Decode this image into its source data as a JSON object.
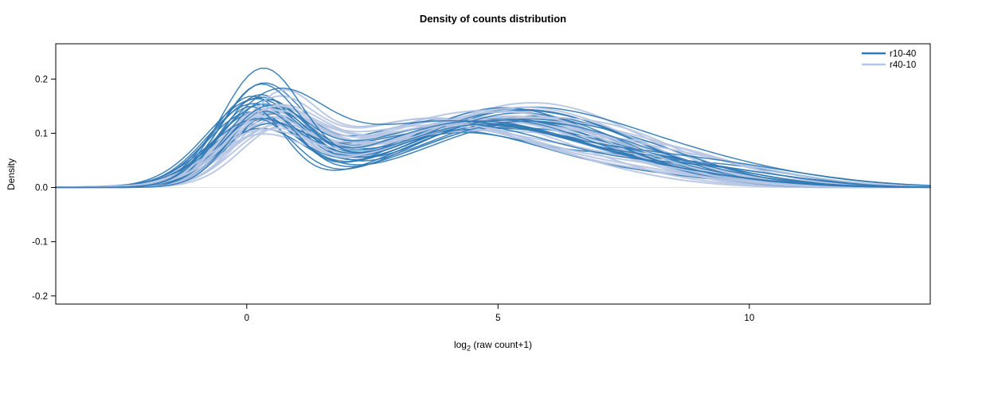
{
  "chart_data": {
    "type": "line",
    "subtype": "density-ensemble",
    "title": "Density of counts distribution",
    "xlabel": {
      "prefix": "log",
      "sub": "2",
      "suffix": " (raw count+1)"
    },
    "ylabel": "Density",
    "xlim": [
      -3.8,
      13.6
    ],
    "ylim": [
      -0.215,
      0.265
    ],
    "x_ticks": [
      0,
      5,
      10
    ],
    "x_tick_labels": [
      "0",
      "5",
      "10"
    ],
    "y_ticks": [
      -0.2,
      -0.1,
      0.0,
      0.1,
      0.2
    ],
    "y_tick_labels": [
      "-0.2",
      "-0.1",
      "0.0",
      "0.1",
      "0.2"
    ],
    "grid": false,
    "legend_position": "top-right",
    "background_color": "#ffffff",
    "border_color": "#000000",
    "zero_line_color": "#e2e2e2",
    "series_groups": [
      {
        "name": "r10-40",
        "color": "#3079b5",
        "count": 22,
        "stroke_width": 1.5,
        "seed": 101,
        "peak1": {
          "amp": [
            0.1,
            0.165
          ],
          "mean": [
            0.05,
            0.55
          ],
          "sd": [
            0.65,
            1.0
          ]
        },
        "peak2": {
          "amp": [
            0.095,
            0.135
          ],
          "mean": [
            3.9,
            5.7
          ],
          "sd": [
            1.7,
            2.4
          ]
        },
        "peak3": {
          "amp": [
            0.01,
            0.05
          ],
          "mean": [
            6.8,
            9.6
          ],
          "sd": [
            1.3,
            2.2
          ]
        }
      },
      {
        "name": "r40-10",
        "color": "#b6c6e3",
        "count": 22,
        "stroke_width": 2.0,
        "seed": 202,
        "peak1": {
          "amp": [
            0.085,
            0.135
          ],
          "mean": [
            0.15,
            0.65
          ],
          "sd": [
            0.7,
            1.05
          ]
        },
        "peak2": {
          "amp": [
            0.1,
            0.135
          ],
          "mean": [
            3.5,
            5.3
          ],
          "sd": [
            1.7,
            2.5
          ]
        },
        "peak3": {
          "amp": [
            0.015,
            0.05
          ],
          "mean": [
            6.3,
            8.6
          ],
          "sd": [
            1.3,
            2.0
          ]
        }
      }
    ],
    "highlight_curves": [
      {
        "group": 0,
        "peaks": [
          [
            0.21,
            0.3,
            0.8
          ],
          [
            0.115,
            4.7,
            2.0
          ],
          [
            0.02,
            8.5,
            1.7
          ]
        ]
      },
      {
        "group": 0,
        "peaks": [
          [
            0.175,
            0.25,
            0.78
          ],
          [
            0.12,
            4.5,
            2.1
          ],
          [
            0.02,
            8.2,
            1.8
          ]
        ]
      }
    ],
    "legend": [
      {
        "label": "r10-40",
        "color": "#3079b5"
      },
      {
        "label": "r40-10",
        "color": "#b6c6e3"
      }
    ]
  }
}
